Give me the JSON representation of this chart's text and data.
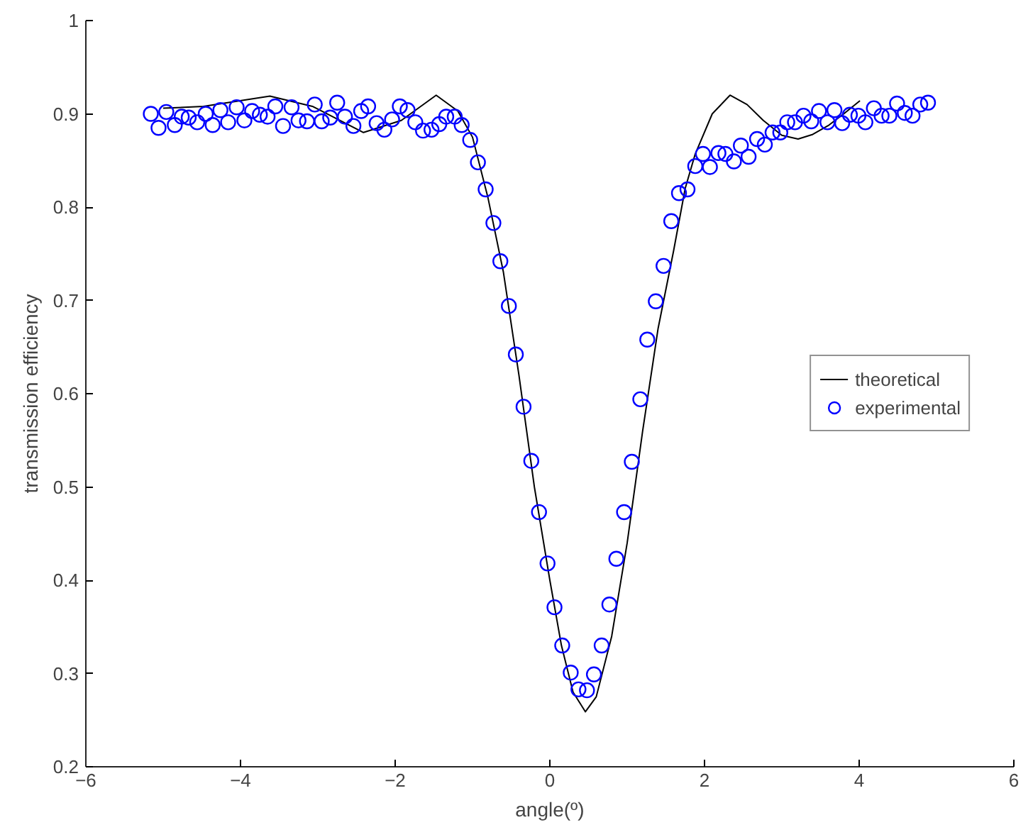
{
  "chart_data": {
    "type": "line",
    "xlabel": "angle(º)",
    "ylabel": "transmission efficiency",
    "xlim": [
      -6,
      6
    ],
    "xticks": [
      -6,
      -4,
      -2,
      0,
      2,
      4,
      6
    ],
    "ylim": [
      0.2,
      1
    ],
    "yticks": [
      0.2,
      0.3,
      0.4,
      0.5,
      0.6,
      0.7,
      0.8,
      0.9,
      1
    ],
    "grid": false,
    "legend": "right",
    "series": [
      {
        "name": "theoretical",
        "color": "#000000",
        "marker": "none",
        "line_style": "solid",
        "x": [
          -5.0,
          -4.48,
          -3.62,
          -3.07,
          -2.41,
          -1.92,
          -1.47,
          -1.19,
          -1.0,
          -0.8,
          -0.6,
          -0.4,
          -0.2,
          0.0,
          0.15,
          0.3,
          0.46,
          0.6,
          0.8,
          1.0,
          1.2,
          1.4,
          1.6,
          1.75,
          1.88,
          2.1,
          2.33,
          2.55,
          2.76,
          3.0,
          3.21,
          3.4,
          3.61,
          3.8,
          4.01
        ],
        "values": [
          0.906,
          0.908,
          0.919,
          0.908,
          0.88,
          0.893,
          0.92,
          0.903,
          0.875,
          0.81,
          0.73,
          0.62,
          0.5,
          0.4,
          0.33,
          0.28,
          0.259,
          0.275,
          0.34,
          0.44,
          0.56,
          0.67,
          0.753,
          0.82,
          0.857,
          0.9,
          0.92,
          0.91,
          0.893,
          0.877,
          0.873,
          0.878,
          0.888,
          0.9,
          0.914
        ]
      },
      {
        "name": "experimental",
        "type": "scatter",
        "color": "#0000ff",
        "marker": "circle",
        "x": [
          -5.16,
          -5.06,
          -4.96,
          -4.85,
          -4.76,
          -4.67,
          -4.56,
          -4.45,
          -4.36,
          -4.26,
          -4.16,
          -4.05,
          -3.95,
          -3.85,
          -3.75,
          -3.65,
          -3.55,
          -3.45,
          -3.34,
          -3.25,
          -3.14,
          -3.04,
          -2.95,
          -2.84,
          -2.75,
          -2.65,
          -2.54,
          -2.44,
          -2.35,
          -2.24,
          -2.14,
          -2.04,
          -1.94,
          -1.84,
          -1.74,
          -1.64,
          -1.53,
          -1.43,
          -1.34,
          -1.23,
          -1.14,
          -1.03,
          -0.93,
          -0.83,
          -0.73,
          -0.64,
          -0.53,
          -0.44,
          -0.34,
          -0.24,
          -0.14,
          -0.03,
          0.06,
          0.16,
          0.27,
          0.37,
          0.48,
          0.57,
          0.67,
          0.77,
          0.86,
          0.96,
          1.06,
          1.17,
          1.26,
          1.37,
          1.47,
          1.57,
          1.67,
          1.78,
          1.88,
          1.98,
          2.07,
          2.18,
          2.27,
          2.38,
          2.47,
          2.57,
          2.68,
          2.78,
          2.88,
          2.98,
          3.07,
          3.17,
          3.28,
          3.38,
          3.48,
          3.59,
          3.68,
          3.78,
          3.88,
          3.99,
          4.08,
          4.19,
          4.29,
          4.39,
          4.49,
          4.59,
          4.69,
          4.79,
          4.89
        ],
        "values": [
          0.9,
          0.885,
          0.902,
          0.888,
          0.897,
          0.896,
          0.891,
          0.9,
          0.888,
          0.904,
          0.891,
          0.907,
          0.893,
          0.903,
          0.899,
          0.897,
          0.908,
          0.887,
          0.907,
          0.893,
          0.892,
          0.91,
          0.892,
          0.896,
          0.912,
          0.897,
          0.887,
          0.903,
          0.908,
          0.89,
          0.883,
          0.894,
          0.908,
          0.904,
          0.891,
          0.882,
          0.883,
          0.889,
          0.897,
          0.897,
          0.888,
          0.872,
          0.848,
          0.819,
          0.783,
          0.742,
          0.694,
          0.642,
          0.586,
          0.528,
          0.473,
          0.418,
          0.371,
          0.33,
          0.301,
          0.283,
          0.282,
          0.299,
          0.33,
          0.374,
          0.423,
          0.473,
          0.527,
          0.594,
          0.658,
          0.699,
          0.737,
          0.785,
          0.815,
          0.819,
          0.844,
          0.857,
          0.843,
          0.858,
          0.857,
          0.849,
          0.866,
          0.854,
          0.873,
          0.867,
          0.88,
          0.88,
          0.891,
          0.891,
          0.898,
          0.892,
          0.903,
          0.891,
          0.904,
          0.89,
          0.899,
          0.898,
          0.891,
          0.906,
          0.898,
          0.898,
          0.911,
          0.901,
          0.898,
          0.91,
          0.912
        ]
      }
    ]
  }
}
